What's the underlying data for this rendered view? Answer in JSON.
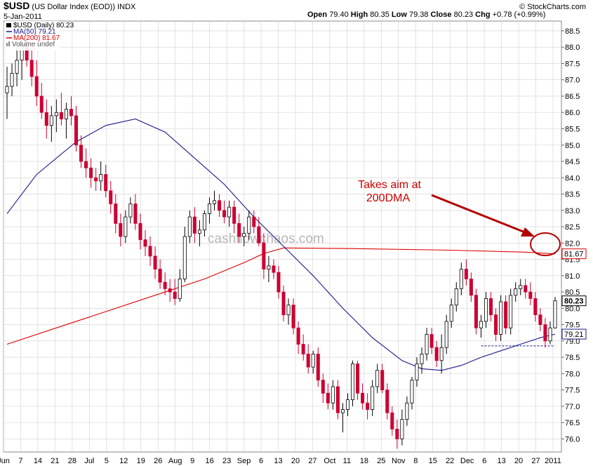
{
  "header": {
    "symbol": "$USD",
    "name": "(US Dollar Index (EOD))",
    "exchange": "INDX",
    "date": "5-Jan-2011",
    "open_label": "Open",
    "open": "79.40",
    "high_label": "High",
    "high": "80.35",
    "low_label": "Low",
    "low": "79.38",
    "close_label": "Close",
    "close": "80.23",
    "chg_label": "Chg",
    "chg": "+0.78 (+0.99%)",
    "credit": "© StockCharts.com"
  },
  "legend": {
    "price": "$USD (Daily) 80.23",
    "ma50": "MA(50) 79.21",
    "ma200": "MA(200) 81.67",
    "volume": "Volume undef"
  },
  "badges": {
    "ma200": "81.67",
    "close": "80.23",
    "ma50": "79.21"
  },
  "annotation": {
    "line1": "Takes aim at",
    "line2": "200DMA"
  },
  "watermark": "cashflowchaos.com",
  "colors": {
    "up": "#000000",
    "down": "#cc0033",
    "ma50": "#1a1a8c",
    "ma200": "#e00000",
    "annotation": "#cc0000",
    "support": "#1a1a8c",
    "grid": "#d0d0d0"
  },
  "chart_data": {
    "type": "candlestick",
    "yaxis_side": "right",
    "ylim": [
      75.6,
      88.8
    ],
    "y_ticks": [
      "76.0",
      "76.5",
      "77.0",
      "77.5",
      "78.0",
      "78.5",
      "79.0",
      "79.5",
      "80.0",
      "80.5",
      "81.0",
      "81.5",
      "82.0",
      "82.5",
      "83.0",
      "83.5",
      "84.0",
      "84.5",
      "85.0",
      "85.5",
      "86.0",
      "86.5",
      "87.0",
      "87.5",
      "88.0",
      "88.5"
    ],
    "x_ticks": [
      "Jun",
      "7",
      "14",
      "21",
      "28",
      "Jul",
      "5",
      "12",
      "19",
      "26",
      "Aug",
      "9",
      "16",
      "23",
      "Sep",
      "6",
      "13",
      "20",
      "27",
      "Oct",
      "11",
      "18",
      "25",
      "Nov",
      "8",
      "15",
      "22",
      "Dec",
      "6",
      "13",
      "20",
      "27",
      "2011"
    ],
    "candles": [
      {
        "o": 86.6,
        "h": 87.4,
        "l": 85.8,
        "c": 86.8
      },
      {
        "o": 86.8,
        "h": 87.5,
        "l": 86.5,
        "c": 87.2
      },
      {
        "o": 87.2,
        "h": 88.0,
        "l": 86.8,
        "c": 87.6
      },
      {
        "o": 87.6,
        "h": 88.4,
        "l": 87.0,
        "c": 88.1
      },
      {
        "o": 88.1,
        "h": 88.6,
        "l": 87.4,
        "c": 87.6
      },
      {
        "o": 87.6,
        "h": 88.0,
        "l": 86.8,
        "c": 87.1
      },
      {
        "o": 87.1,
        "h": 87.6,
        "l": 86.2,
        "c": 86.5
      },
      {
        "o": 86.5,
        "h": 86.9,
        "l": 85.8,
        "c": 86.0
      },
      {
        "o": 86.0,
        "h": 86.4,
        "l": 85.2,
        "c": 85.6
      },
      {
        "o": 85.6,
        "h": 86.2,
        "l": 85.1,
        "c": 85.9
      },
      {
        "o": 85.9,
        "h": 86.4,
        "l": 85.4,
        "c": 86.0
      },
      {
        "o": 86.0,
        "h": 86.6,
        "l": 85.6,
        "c": 85.8
      },
      {
        "o": 85.8,
        "h": 86.3,
        "l": 85.2,
        "c": 86.1
      },
      {
        "o": 86.1,
        "h": 86.5,
        "l": 85.6,
        "c": 85.9
      },
      {
        "o": 85.9,
        "h": 86.2,
        "l": 84.8,
        "c": 85.0
      },
      {
        "o": 85.0,
        "h": 85.3,
        "l": 84.3,
        "c": 84.5
      },
      {
        "o": 84.5,
        "h": 84.9,
        "l": 84.0,
        "c": 84.3
      },
      {
        "o": 84.3,
        "h": 84.6,
        "l": 83.7,
        "c": 84.0
      },
      {
        "o": 84.0,
        "h": 84.3,
        "l": 83.6,
        "c": 83.9
      },
      {
        "o": 83.9,
        "h": 84.5,
        "l": 83.6,
        "c": 84.1
      },
      {
        "o": 84.1,
        "h": 84.4,
        "l": 83.4,
        "c": 83.6
      },
      {
        "o": 83.6,
        "h": 83.9,
        "l": 82.9,
        "c": 83.2
      },
      {
        "o": 83.2,
        "h": 83.5,
        "l": 82.3,
        "c": 82.6
      },
      {
        "o": 82.6,
        "h": 82.9,
        "l": 81.9,
        "c": 82.2
      },
      {
        "o": 82.2,
        "h": 83.0,
        "l": 82.0,
        "c": 82.8
      },
      {
        "o": 82.8,
        "h": 83.4,
        "l": 82.6,
        "c": 83.2
      },
      {
        "o": 83.2,
        "h": 83.5,
        "l": 82.4,
        "c": 82.6
      },
      {
        "o": 82.6,
        "h": 82.9,
        "l": 81.8,
        "c": 82.1
      },
      {
        "o": 82.1,
        "h": 82.4,
        "l": 81.6,
        "c": 81.9
      },
      {
        "o": 81.9,
        "h": 82.2,
        "l": 81.3,
        "c": 81.6
      },
      {
        "o": 81.6,
        "h": 81.9,
        "l": 80.9,
        "c": 81.2
      },
      {
        "o": 81.2,
        "h": 81.5,
        "l": 80.6,
        "c": 80.8
      },
      {
        "o": 80.8,
        "h": 81.1,
        "l": 80.4,
        "c": 80.6
      },
      {
        "o": 80.6,
        "h": 80.9,
        "l": 80.2,
        "c": 80.5
      },
      {
        "o": 80.5,
        "h": 80.9,
        "l": 80.1,
        "c": 80.3
      },
      {
        "o": 80.3,
        "h": 81.2,
        "l": 80.2,
        "c": 80.9
      },
      {
        "o": 80.9,
        "h": 82.5,
        "l": 80.8,
        "c": 82.2
      },
      {
        "o": 82.2,
        "h": 83.0,
        "l": 82.0,
        "c": 82.8
      },
      {
        "o": 82.8,
        "h": 83.1,
        "l": 82.0,
        "c": 82.3
      },
      {
        "o": 82.3,
        "h": 82.7,
        "l": 81.9,
        "c": 82.4
      },
      {
        "o": 82.4,
        "h": 83.0,
        "l": 82.2,
        "c": 82.9
      },
      {
        "o": 82.9,
        "h": 83.4,
        "l": 82.6,
        "c": 83.2
      },
      {
        "o": 83.2,
        "h": 83.6,
        "l": 83.0,
        "c": 83.3
      },
      {
        "o": 83.3,
        "h": 83.5,
        "l": 82.8,
        "c": 83.0
      },
      {
        "o": 83.0,
        "h": 83.3,
        "l": 82.6,
        "c": 82.8
      },
      {
        "o": 82.8,
        "h": 83.3,
        "l": 82.5,
        "c": 83.1
      },
      {
        "o": 83.1,
        "h": 83.3,
        "l": 82.3,
        "c": 82.6
      },
      {
        "o": 82.6,
        "h": 82.9,
        "l": 82.0,
        "c": 82.2
      },
      {
        "o": 82.2,
        "h": 82.5,
        "l": 81.9,
        "c": 82.3
      },
      {
        "o": 82.3,
        "h": 83.0,
        "l": 82.1,
        "c": 82.8
      },
      {
        "o": 82.8,
        "h": 83.0,
        "l": 82.3,
        "c": 82.5
      },
      {
        "o": 82.5,
        "h": 82.8,
        "l": 81.9,
        "c": 82.0
      },
      {
        "o": 82.0,
        "h": 82.3,
        "l": 80.9,
        "c": 81.2
      },
      {
        "o": 81.2,
        "h": 81.6,
        "l": 80.8,
        "c": 81.3
      },
      {
        "o": 81.3,
        "h": 81.5,
        "l": 80.9,
        "c": 81.1
      },
      {
        "o": 81.1,
        "h": 81.3,
        "l": 80.3,
        "c": 80.5
      },
      {
        "o": 80.5,
        "h": 80.7,
        "l": 79.6,
        "c": 79.8
      },
      {
        "o": 79.8,
        "h": 80.3,
        "l": 79.5,
        "c": 80.1
      },
      {
        "o": 80.1,
        "h": 80.3,
        "l": 79.2,
        "c": 79.4
      },
      {
        "o": 79.4,
        "h": 79.6,
        "l": 78.6,
        "c": 78.9
      },
      {
        "o": 78.9,
        "h": 79.2,
        "l": 78.4,
        "c": 78.6
      },
      {
        "o": 78.6,
        "h": 78.9,
        "l": 78.0,
        "c": 78.2
      },
      {
        "o": 78.2,
        "h": 78.7,
        "l": 78.0,
        "c": 78.6
      },
      {
        "o": 78.6,
        "h": 78.8,
        "l": 77.6,
        "c": 77.8
      },
      {
        "o": 77.8,
        "h": 78.0,
        "l": 77.1,
        "c": 77.4
      },
      {
        "o": 77.4,
        "h": 77.7,
        "l": 76.9,
        "c": 77.1
      },
      {
        "o": 77.1,
        "h": 77.8,
        "l": 76.9,
        "c": 77.6
      },
      {
        "o": 77.6,
        "h": 77.8,
        "l": 76.6,
        "c": 76.8
      },
      {
        "o": 76.8,
        "h": 77.1,
        "l": 76.2,
        "c": 76.9
      },
      {
        "o": 76.9,
        "h": 77.4,
        "l": 76.7,
        "c": 77.2
      },
      {
        "o": 77.2,
        "h": 78.4,
        "l": 77.0,
        "c": 78.3
      },
      {
        "o": 78.3,
        "h": 78.4,
        "l": 77.2,
        "c": 77.4
      },
      {
        "o": 77.4,
        "h": 77.7,
        "l": 76.9,
        "c": 77.1
      },
      {
        "o": 77.1,
        "h": 77.4,
        "l": 76.6,
        "c": 76.9
      },
      {
        "o": 76.9,
        "h": 77.8,
        "l": 76.7,
        "c": 77.6
      },
      {
        "o": 77.6,
        "h": 78.3,
        "l": 77.4,
        "c": 78.1
      },
      {
        "o": 78.1,
        "h": 78.3,
        "l": 77.4,
        "c": 77.5
      },
      {
        "o": 77.5,
        "h": 77.7,
        "l": 76.6,
        "c": 76.8
      },
      {
        "o": 76.8,
        "h": 77.0,
        "l": 76.1,
        "c": 76.3
      },
      {
        "o": 76.3,
        "h": 76.6,
        "l": 75.7,
        "c": 76.0
      },
      {
        "o": 76.0,
        "h": 76.9,
        "l": 75.8,
        "c": 76.6
      },
      {
        "o": 76.6,
        "h": 77.3,
        "l": 76.4,
        "c": 77.1
      },
      {
        "o": 77.1,
        "h": 77.9,
        "l": 76.9,
        "c": 77.8
      },
      {
        "o": 77.8,
        "h": 78.5,
        "l": 77.6,
        "c": 78.3
      },
      {
        "o": 78.3,
        "h": 78.8,
        "l": 78.0,
        "c": 78.6
      },
      {
        "o": 78.6,
        "h": 79.4,
        "l": 78.4,
        "c": 79.2
      },
      {
        "o": 79.2,
        "h": 79.4,
        "l": 78.6,
        "c": 78.8
      },
      {
        "o": 78.8,
        "h": 79.0,
        "l": 78.2,
        "c": 78.4
      },
      {
        "o": 78.4,
        "h": 79.2,
        "l": 78.0,
        "c": 78.8
      },
      {
        "o": 78.8,
        "h": 79.8,
        "l": 78.6,
        "c": 79.6
      },
      {
        "o": 79.6,
        "h": 80.3,
        "l": 79.4,
        "c": 80.1
      },
      {
        "o": 80.1,
        "h": 80.8,
        "l": 79.9,
        "c": 80.6
      },
      {
        "o": 80.6,
        "h": 81.4,
        "l": 80.4,
        "c": 81.2
      },
      {
        "o": 81.2,
        "h": 81.5,
        "l": 80.7,
        "c": 80.9
      },
      {
        "o": 80.9,
        "h": 81.1,
        "l": 80.2,
        "c": 80.4
      },
      {
        "o": 80.4,
        "h": 80.6,
        "l": 79.2,
        "c": 79.4
      },
      {
        "o": 79.4,
        "h": 79.8,
        "l": 79.1,
        "c": 79.6
      },
      {
        "o": 79.6,
        "h": 80.5,
        "l": 79.4,
        "c": 80.3
      },
      {
        "o": 80.3,
        "h": 80.5,
        "l": 79.6,
        "c": 79.8
      },
      {
        "o": 79.8,
        "h": 80.0,
        "l": 79.0,
        "c": 79.2
      },
      {
        "o": 79.2,
        "h": 80.4,
        "l": 79.0,
        "c": 80.2
      },
      {
        "o": 80.2,
        "h": 80.4,
        "l": 79.2,
        "c": 79.4
      },
      {
        "o": 79.4,
        "h": 80.6,
        "l": 79.2,
        "c": 80.4
      },
      {
        "o": 80.4,
        "h": 80.8,
        "l": 80.2,
        "c": 80.6
      },
      {
        "o": 80.6,
        "h": 80.9,
        "l": 80.4,
        "c": 80.7
      },
      {
        "o": 80.7,
        "h": 80.9,
        "l": 80.3,
        "c": 80.5
      },
      {
        "o": 80.5,
        "h": 80.8,
        "l": 80.1,
        "c": 80.3
      },
      {
        "o": 80.3,
        "h": 80.5,
        "l": 79.6,
        "c": 79.8
      },
      {
        "o": 79.8,
        "h": 80.0,
        "l": 79.3,
        "c": 79.5
      },
      {
        "o": 79.5,
        "h": 79.7,
        "l": 78.8,
        "c": 79.0
      },
      {
        "o": 79.0,
        "h": 79.6,
        "l": 78.9,
        "c": 79.4
      },
      {
        "o": 79.4,
        "h": 80.35,
        "l": 79.38,
        "c": 80.23
      }
    ],
    "ma50": [
      [
        0,
        82.9
      ],
      [
        6,
        84.1
      ],
      [
        14,
        85.1
      ],
      [
        20,
        85.6
      ],
      [
        26,
        85.8
      ],
      [
        32,
        85.4
      ],
      [
        38,
        84.6
      ],
      [
        44,
        83.8
      ],
      [
        50,
        82.8
      ],
      [
        56,
        81.9
      ],
      [
        62,
        81.0
      ],
      [
        68,
        80.0
      ],
      [
        74,
        79.1
      ],
      [
        80,
        78.4
      ],
      [
        84,
        78.15
      ],
      [
        88,
        78.1
      ],
      [
        92,
        78.25
      ],
      [
        96,
        78.5
      ],
      [
        100,
        78.7
      ],
      [
        104,
        78.9
      ],
      [
        108,
        79.1
      ],
      [
        111,
        79.21
      ]
    ],
    "ma200": [
      [
        0,
        78.9
      ],
      [
        10,
        79.4
      ],
      [
        20,
        79.9
      ],
      [
        30,
        80.4
      ],
      [
        40,
        80.9
      ],
      [
        48,
        81.4
      ],
      [
        52,
        81.68
      ],
      [
        56,
        81.85
      ],
      [
        70,
        81.83
      ],
      [
        90,
        81.78
      ],
      [
        105,
        81.72
      ],
      [
        111,
        81.67
      ]
    ],
    "support_line": {
      "from_index": 96,
      "to_index": 111,
      "value": 78.85
    },
    "annotation": {
      "text": "Takes aim at 200DMA",
      "points_to": "MA(200) 81.67"
    }
  }
}
